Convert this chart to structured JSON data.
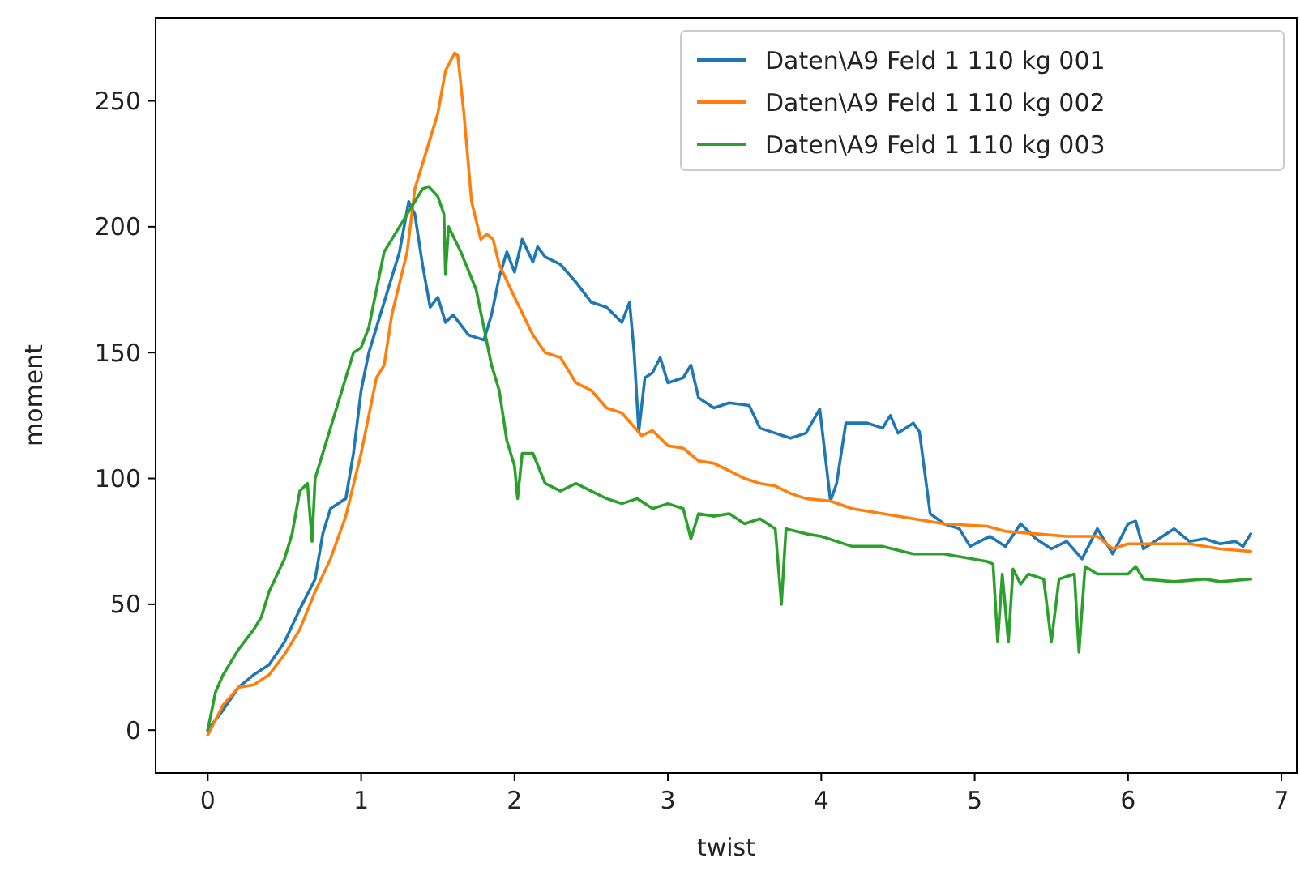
{
  "chart_data": {
    "type": "line",
    "xlabel": "twist",
    "ylabel": "moment",
    "xlim": [
      -0.34,
      7.1
    ],
    "ylim": [
      -17,
      283
    ],
    "xticks": [
      0,
      1,
      2,
      3,
      4,
      5,
      6,
      7
    ],
    "yticks": [
      0,
      50,
      100,
      150,
      200,
      250
    ],
    "legend": "top right",
    "grid": false,
    "series": [
      {
        "name": "Daten\\A9 Feld 1 110 kg 001",
        "color": "#1f77b4",
        "x": [
          0,
          0.1,
          0.2,
          0.3,
          0.4,
          0.5,
          0.6,
          0.7,
          0.75,
          0.8,
          0.9,
          0.95,
          1.0,
          1.05,
          1.1,
          1.2,
          1.25,
          1.31,
          1.35,
          1.4,
          1.45,
          1.5,
          1.55,
          1.6,
          1.7,
          1.8,
          1.85,
          1.9,
          1.95,
          2.0,
          2.05,
          2.12,
          2.15,
          2.2,
          2.3,
          2.4,
          2.5,
          2.6,
          2.7,
          2.75,
          2.78,
          2.81,
          2.85,
          2.9,
          2.95,
          3.0,
          3.1,
          3.15,
          3.2,
          3.3,
          3.4,
          3.53,
          3.6,
          3.7,
          3.75,
          3.8,
          3.9,
          3.99,
          4.06,
          4.1,
          4.16,
          4.3,
          4.4,
          4.45,
          4.5,
          4.6,
          4.64,
          4.71,
          4.8,
          4.9,
          4.97,
          5.1,
          5.2,
          5.3,
          5.4,
          5.5,
          5.6,
          5.7,
          5.8,
          5.9,
          6.0,
          6.05,
          6.1,
          6.2,
          6.3,
          6.4,
          6.5,
          6.6,
          6.7,
          6.75,
          6.8
        ],
        "values": [
          0,
          8,
          17,
          22,
          26,
          35,
          48,
          60,
          78,
          88,
          92,
          110,
          135,
          150,
          160,
          180,
          190,
          210,
          205,
          185,
          168,
          172,
          162,
          165,
          157,
          155,
          165,
          180,
          190,
          182,
          195,
          186,
          192,
          188,
          185,
          178,
          170,
          168,
          162,
          170,
          150,
          118.6,
          140,
          142,
          148,
          138,
          140,
          145,
          132,
          128,
          130,
          129,
          120,
          118,
          117,
          116,
          118,
          127.6,
          91,
          98,
          122,
          122,
          120,
          125,
          118,
          122,
          118.6,
          86,
          82,
          80,
          73,
          77,
          73,
          82,
          76,
          72,
          75,
          68,
          80,
          70,
          82,
          83,
          72,
          76,
          80,
          75,
          76,
          74,
          75,
          73,
          78
        ]
      },
      {
        "name": "Daten\\A9 Feld 1 110 kg 002",
        "color": "#ff7f0e",
        "x": [
          0,
          0.1,
          0.2,
          0.3,
          0.4,
          0.5,
          0.6,
          0.7,
          0.8,
          0.9,
          1.0,
          1.1,
          1.15,
          1.2,
          1.3,
          1.35,
          1.4,
          1.45,
          1.5,
          1.55,
          1.61,
          1.63,
          1.67,
          1.72,
          1.78,
          1.82,
          1.86,
          1.9,
          2.0,
          2.12,
          2.2,
          2.3,
          2.4,
          2.5,
          2.6,
          2.7,
          2.83,
          2.9,
          3.0,
          3.1,
          3.2,
          3.3,
          3.4,
          3.5,
          3.6,
          3.7,
          3.8,
          3.9,
          4.06,
          4.2,
          4.4,
          4.6,
          4.8,
          5.08,
          5.2,
          5.4,
          5.6,
          5.8,
          5.9,
          6.0,
          6.2,
          6.4,
          6.6,
          6.8
        ],
        "values": [
          -2,
          10,
          17,
          18,
          22,
          30,
          40,
          55,
          68,
          85,
          110,
          140,
          145,
          165,
          190,
          215,
          225,
          235,
          245,
          262,
          269,
          268,
          245,
          210,
          195,
          197,
          195,
          185,
          172,
          157,
          150,
          148,
          138,
          135,
          128,
          126,
          117,
          119,
          113,
          112,
          107,
          106,
          103,
          100,
          98,
          97,
          94,
          92,
          91,
          88,
          86,
          84,
          82,
          81,
          79,
          78,
          77,
          77,
          72,
          74,
          74,
          74,
          72,
          71
        ]
      },
      {
        "name": "Daten\\A9 Feld 1 110 kg 003",
        "color": "#2ca02c",
        "x": [
          0,
          0.05,
          0.1,
          0.2,
          0.3,
          0.35,
          0.4,
          0.5,
          0.55,
          0.6,
          0.65,
          0.68,
          0.7,
          0.8,
          0.9,
          0.95,
          1.0,
          1.05,
          1.1,
          1.15,
          1.2,
          1.25,
          1.3,
          1.35,
          1.4,
          1.44,
          1.5,
          1.54,
          1.55,
          1.57,
          1.65,
          1.75,
          1.8,
          1.85,
          1.9,
          1.95,
          2.0,
          2.02,
          2.05,
          2.12,
          2.2,
          2.3,
          2.4,
          2.5,
          2.6,
          2.7,
          2.8,
          2.9,
          3.0,
          3.1,
          3.15,
          3.2,
          3.3,
          3.4,
          3.5,
          3.6,
          3.7,
          3.74,
          3.77,
          3.9,
          4.0,
          4.2,
          4.4,
          4.6,
          4.8,
          5.08,
          5.12,
          5.15,
          5.18,
          5.22,
          5.25,
          5.3,
          5.35,
          5.45,
          5.5,
          5.55,
          5.65,
          5.68,
          5.72,
          5.8,
          6.0,
          6.05,
          6.1,
          6.3,
          6.5,
          6.6,
          6.8
        ],
        "values": [
          0,
          15,
          22,
          32,
          40,
          45,
          55,
          68,
          78,
          95,
          98,
          75,
          100,
          120,
          140,
          150,
          152,
          160,
          175,
          190,
          195,
          200,
          205,
          210,
          215,
          216,
          212,
          205,
          181,
          200,
          190,
          175,
          160,
          145,
          135,
          115,
          105,
          92,
          110,
          110,
          98,
          95,
          98,
          95,
          92,
          90,
          92,
          88,
          90,
          88,
          76,
          86,
          85,
          86,
          82,
          84,
          80,
          50,
          80,
          78,
          77,
          73,
          73,
          70,
          70,
          67,
          66,
          35,
          62,
          35,
          64,
          58,
          62,
          60,
          35,
          60,
          62,
          31,
          65,
          62,
          62,
          65,
          60,
          59,
          60,
          59,
          60
        ]
      }
    ]
  }
}
